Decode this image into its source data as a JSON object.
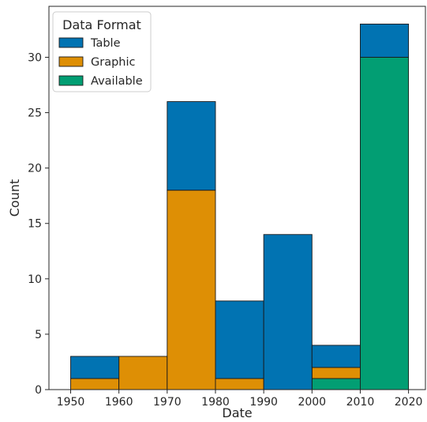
{
  "chart_data": {
    "type": "bar",
    "stacked": true,
    "histogram": true,
    "bin_edges": [
      1950,
      1960,
      1970,
      1980,
      1990,
      2000,
      2010,
      2020
    ],
    "x_ticks": [
      1950,
      1960,
      1970,
      1980,
      1990,
      2000,
      2010,
      2020
    ],
    "y_ticks": [
      0,
      5,
      10,
      15,
      20,
      25,
      30
    ],
    "xlabel": "Date",
    "ylabel": "Count",
    "xlim": [
      1945.5,
      2023.5
    ],
    "ylim": [
      0,
      34.6
    ],
    "grid": false,
    "legend": {
      "title": "Data Format",
      "placement": "top-left"
    },
    "series": [
      {
        "name": "Available",
        "color": "#029e73",
        "values": [
          0,
          0,
          0,
          0,
          0,
          1,
          30
        ]
      },
      {
        "name": "Graphic",
        "color": "#de8f05",
        "values": [
          1,
          3,
          18,
          1,
          0,
          1,
          0
        ]
      },
      {
        "name": "Table",
        "color": "#0173b2",
        "values": [
          2,
          0,
          8,
          7,
          14,
          2,
          3
        ]
      }
    ],
    "legend_order": [
      "Table",
      "Graphic",
      "Available"
    ]
  }
}
